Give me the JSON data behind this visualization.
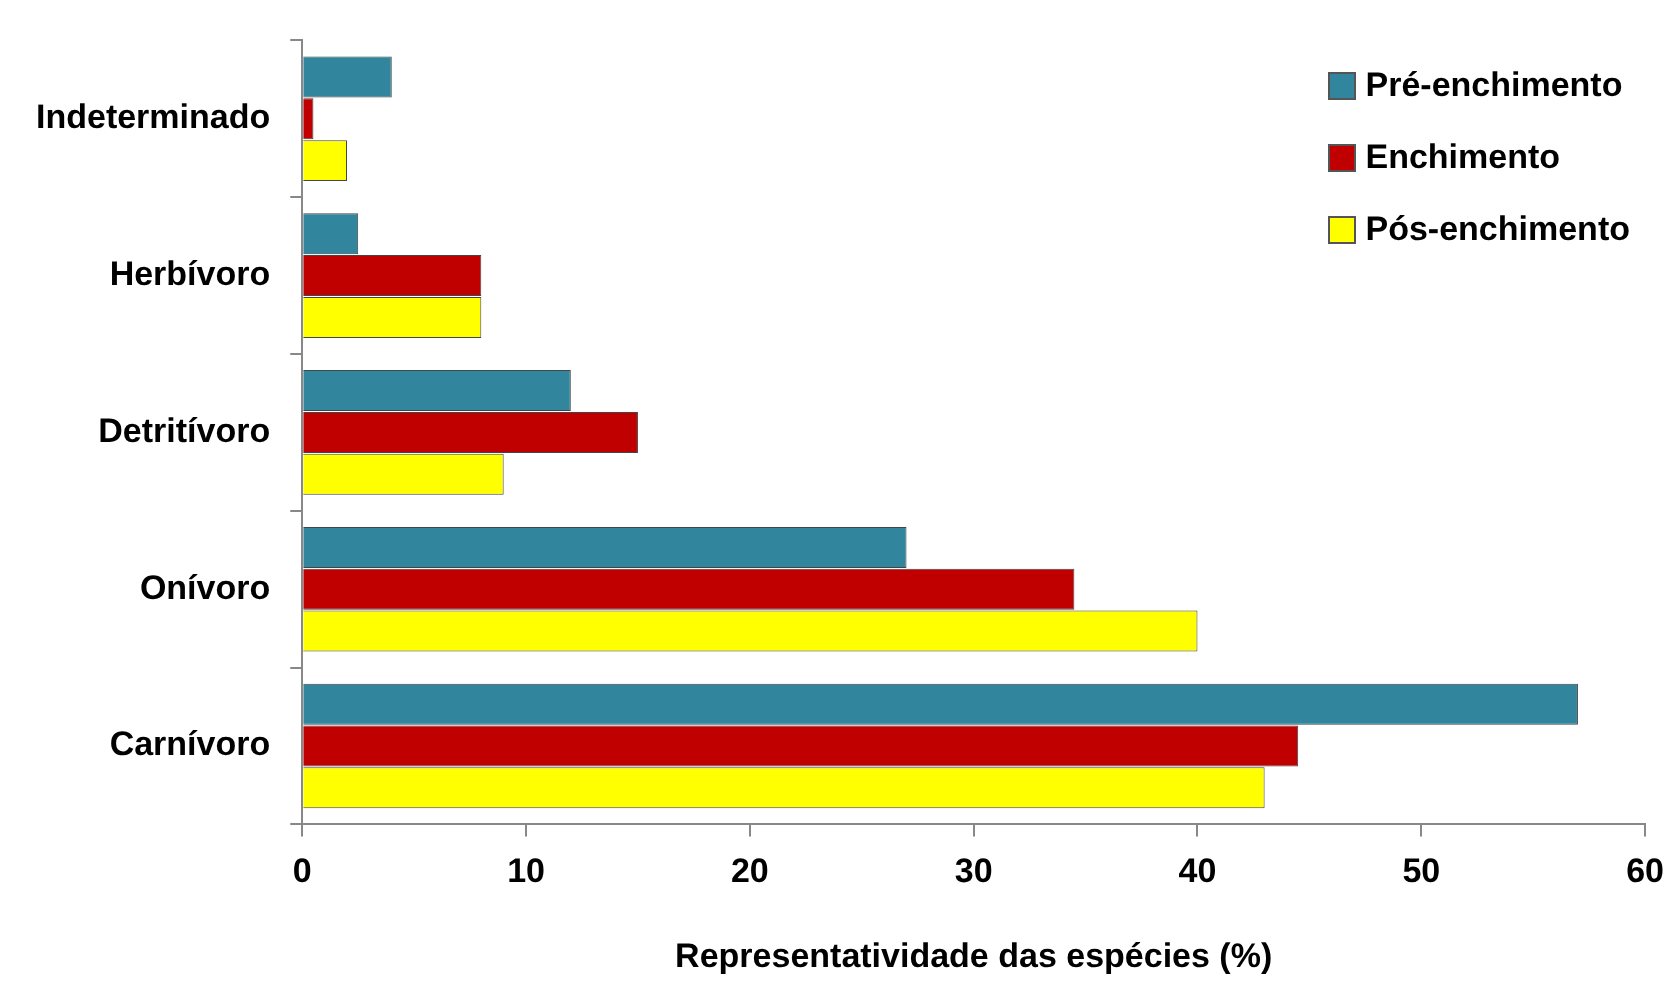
{
  "chart_data": {
    "type": "bar",
    "orientation": "horizontal",
    "xlabel": "Representatividade das espécies (%)",
    "categories": [
      "Indeterminado",
      "Herbívoro",
      "Detritívoro",
      "Onívoro",
      "Carnívoro"
    ],
    "series": [
      {
        "name": "Pré-enchimento",
        "color": "#31859c",
        "values": [
          4,
          2.5,
          12,
          27,
          57
        ]
      },
      {
        "name": "Enchimento",
        "color": "#c00000",
        "values": [
          0.5,
          8,
          15,
          34.5,
          44.5
        ]
      },
      {
        "name": "Pós-enchimento",
        "color": "#ffff00",
        "values": [
          2,
          8,
          9,
          40,
          43
        ]
      }
    ],
    "xlim": [
      0,
      60
    ],
    "xticks": [
      0,
      10,
      20,
      30,
      40,
      50,
      60
    ],
    "grid": false,
    "legend": "top right"
  }
}
